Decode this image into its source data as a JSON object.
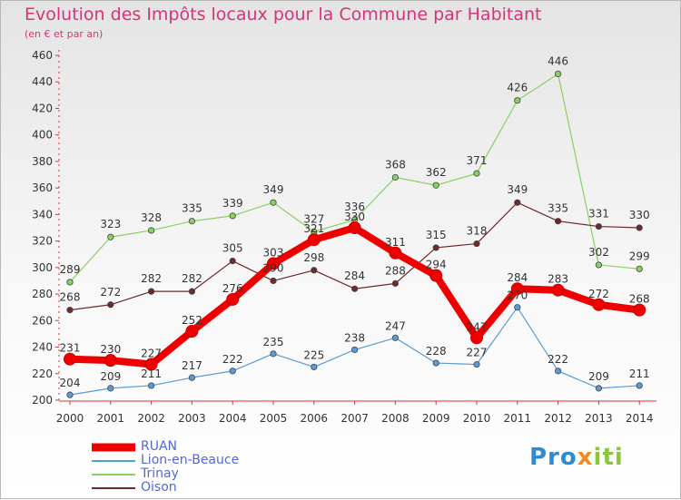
{
  "title": "Evolution des Impôts locaux pour la Commune par Habitant",
  "subtitle": "(en € et par an)",
  "logo": {
    "p1": "Pro",
    "p2": "x",
    "p3": "iti"
  },
  "colors": {
    "title": "#d8327a",
    "axis_text": "#333333",
    "legend_text": "#5568d6",
    "RUAN": "#ee0000",
    "Lion-en-Beauce": "#5b9bd5",
    "Trinay": "#88d060",
    "Oison": "#6e2a2a"
  },
  "chart_data": {
    "type": "line",
    "title": "Evolution des Impôts locaux pour la Commune par Habitant",
    "subtitle": "(en € et par an)",
    "xlabel": "",
    "ylabel": "",
    "ylim": [
      200,
      460
    ],
    "yticks": [
      200,
      220,
      240,
      260,
      280,
      300,
      320,
      340,
      360,
      380,
      400,
      420,
      440,
      460
    ],
    "categories": [
      "2000",
      "2001",
      "2002",
      "2003",
      "2004",
      "2005",
      "2006",
      "2007",
      "2008",
      "2009",
      "2010",
      "2011",
      "2012",
      "2013",
      "2014"
    ],
    "grid": false,
    "legend_position": "bottom-left",
    "series": [
      {
        "name": "RUAN",
        "values": [
          231,
          230,
          227,
          252,
          276,
          303,
          321,
          330,
          311,
          294,
          247,
          284,
          283,
          272,
          268
        ]
      },
      {
        "name": "Lion-en-Beauce",
        "values": [
          204,
          209,
          211,
          217,
          222,
          235,
          225,
          238,
          247,
          228,
          227,
          270,
          222,
          209,
          211
        ]
      },
      {
        "name": "Trinay",
        "values": [
          289,
          323,
          328,
          335,
          339,
          349,
          327,
          336,
          368,
          362,
          371,
          426,
          446,
          302,
          299
        ]
      },
      {
        "name": "Oison",
        "values": [
          268,
          272,
          282,
          282,
          305,
          290,
          298,
          284,
          288,
          315,
          318,
          349,
          335,
          331,
          330
        ]
      }
    ]
  }
}
